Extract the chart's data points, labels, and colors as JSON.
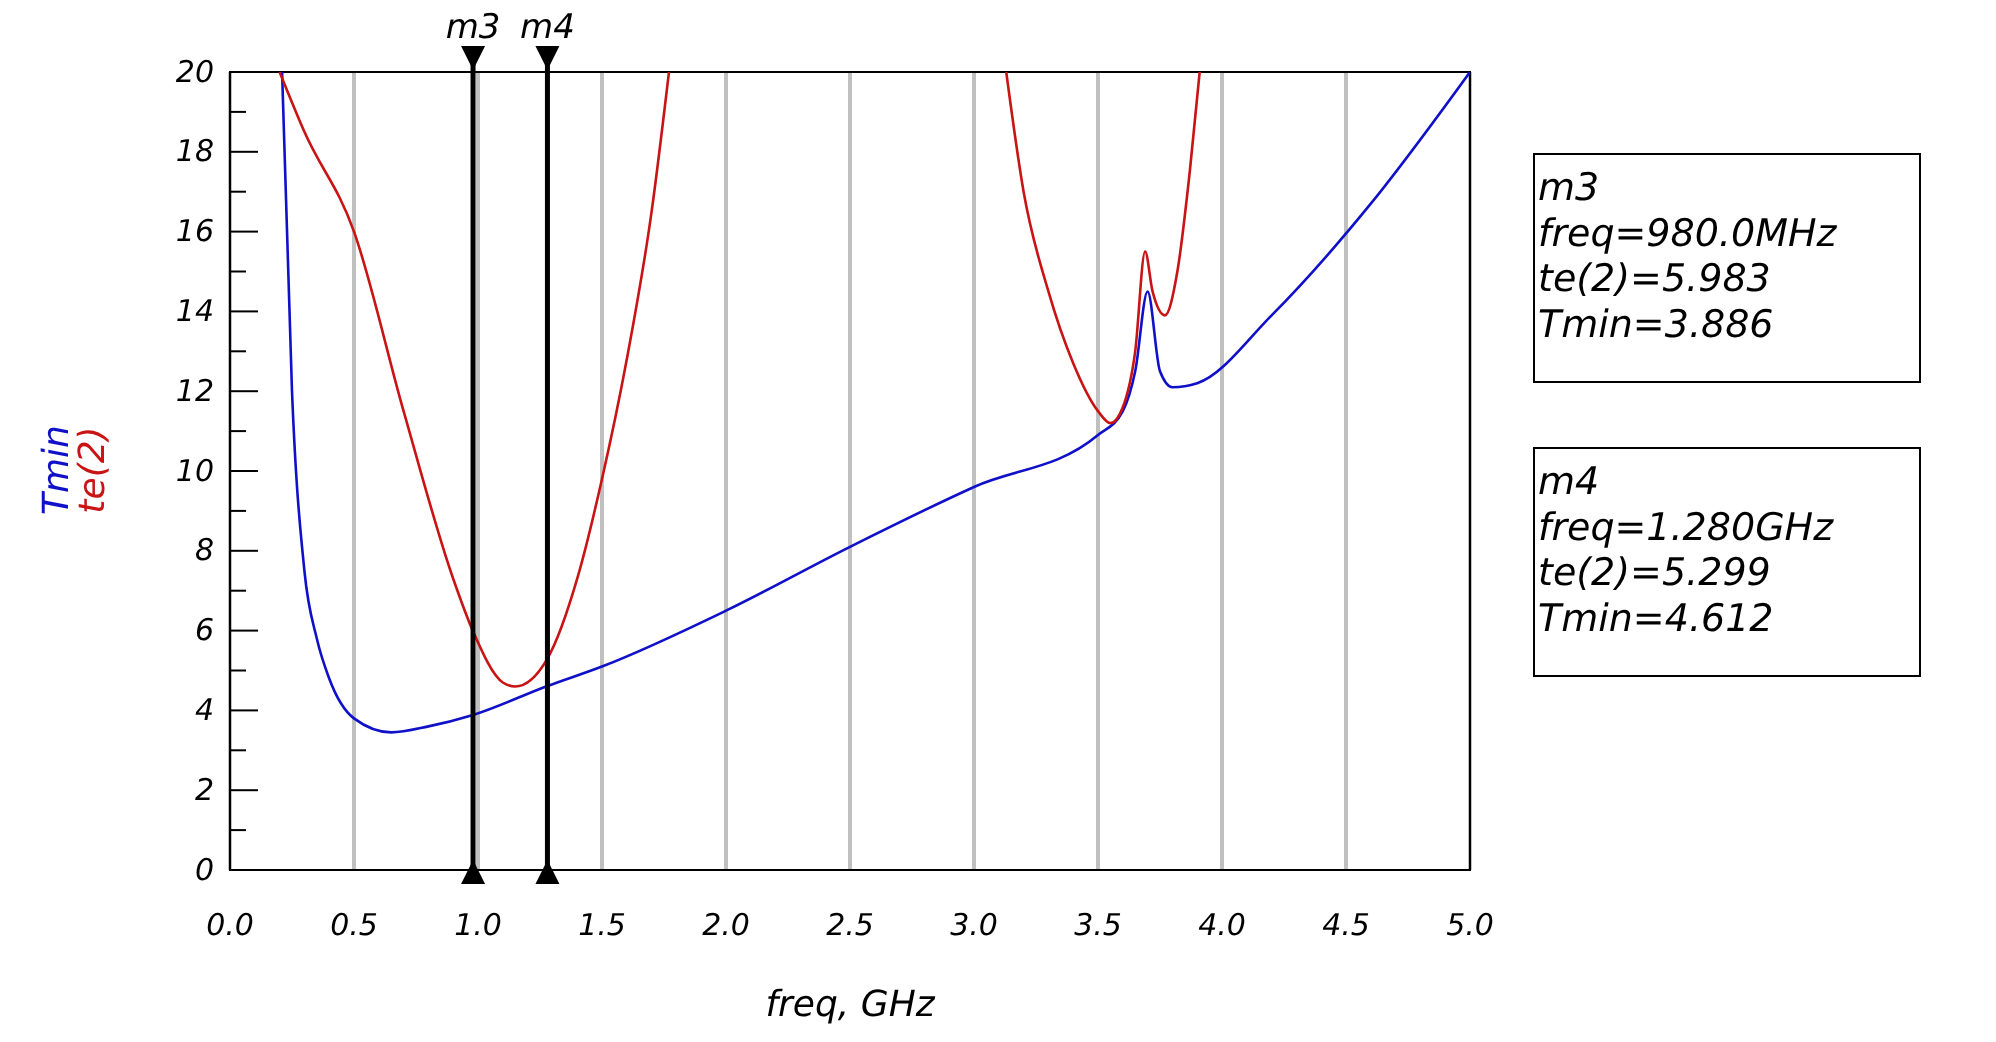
{
  "chart_data": {
    "type": "line",
    "xlabel": "freq, GHz",
    "xlim": [
      0,
      5
    ],
    "xticks": [
      {
        "value": 0,
        "label": "0.0"
      },
      {
        "value": 0.5,
        "label": "0.5"
      },
      {
        "value": 1,
        "label": "1.0"
      },
      {
        "value": 1.5,
        "label": "1.5"
      },
      {
        "value": 2,
        "label": "2.0"
      },
      {
        "value": 2.5,
        "label": "2.5"
      },
      {
        "value": 3,
        "label": "3.0"
      },
      {
        "value": 3.5,
        "label": "3.5"
      },
      {
        "value": 4,
        "label": "4.0"
      },
      {
        "value": 4.5,
        "label": "4.5"
      },
      {
        "value": 5,
        "label": "5.0"
      }
    ],
    "ylim": [
      0,
      20
    ],
    "yticks": [
      0,
      {
        "value": 1,
        "label": null
      },
      2,
      {
        "value": 3,
        "label": null
      },
      4,
      {
        "value": 5,
        "label": null
      },
      6,
      {
        "value": 7,
        "label": null
      },
      8,
      {
        "value": 9,
        "label": null
      },
      10,
      {
        "value": 11,
        "label": null
      },
      12,
      {
        "value": 13,
        "label": null
      },
      14,
      {
        "value": 15,
        "label": null
      },
      16,
      {
        "value": 17,
        "label": null
      },
      18,
      {
        "value": 19,
        "label": null
      },
      20
    ],
    "grid": "x",
    "legend": "left",
    "marker": "none",
    "line_style": "solid",
    "series": [
      {
        "name": "Tmin",
        "color": "#1010c8",
        "x": [
          0.21,
          0.25,
          0.3,
          0.35,
          0.4,
          0.5,
          0.65,
          0.8,
          0.98,
          1.28,
          1.5,
          2.0,
          2.5,
          3.0,
          3.5,
          3.6,
          3.65,
          3.7,
          3.75,
          3.8,
          3.9,
          4.2,
          4.6,
          5.0
        ],
        "values": [
          20,
          12,
          7.5,
          5.8,
          4.8,
          3.8,
          3.45,
          3.6,
          3.886,
          4.612,
          5.1,
          6.5,
          8.1,
          9.6,
          10.9,
          11.5,
          12.5,
          14.5,
          12.5,
          12.1,
          12.2,
          13.9,
          16.7,
          20
        ]
      },
      {
        "name": "te(2)",
        "color": "#c81414",
        "x": [
          0.2,
          0.3,
          0.5,
          0.7,
          0.9,
          0.98,
          1.1,
          1.15,
          1.28,
          1.4,
          1.5,
          1.6,
          1.7,
          1.77,
          2.5,
          3.13,
          3.2,
          3.3,
          3.4,
          3.5,
          3.55,
          3.6,
          3.65,
          3.69,
          3.72,
          3.77,
          3.82,
          3.87,
          3.91
        ],
        "values": [
          20,
          18.5,
          16,
          11.5,
          7.3,
          5.983,
          4.7,
          4.6,
          5.299,
          7.3,
          9.8,
          12.8,
          16.5,
          20,
          null,
          20,
          17,
          14.5,
          12.7,
          11.5,
          11.2,
          11.6,
          13,
          15.5,
          14.5,
          13.9,
          15,
          17.5,
          20
        ]
      }
    ],
    "ref_lines": [
      {
        "axis": "x",
        "value": 0.98,
        "label": "m3",
        "color": "#000000"
      },
      {
        "axis": "x",
        "value": 1.28,
        "label": "m4",
        "color": "#000000"
      }
    ],
    "annotations": [
      "m3\nfreq=980.0MHz\nte(2)=5.983\nTmin=3.886",
      "m4\nfreq=1.280GHz\nte(2)=5.299\nTmin=4.612"
    ]
  }
}
